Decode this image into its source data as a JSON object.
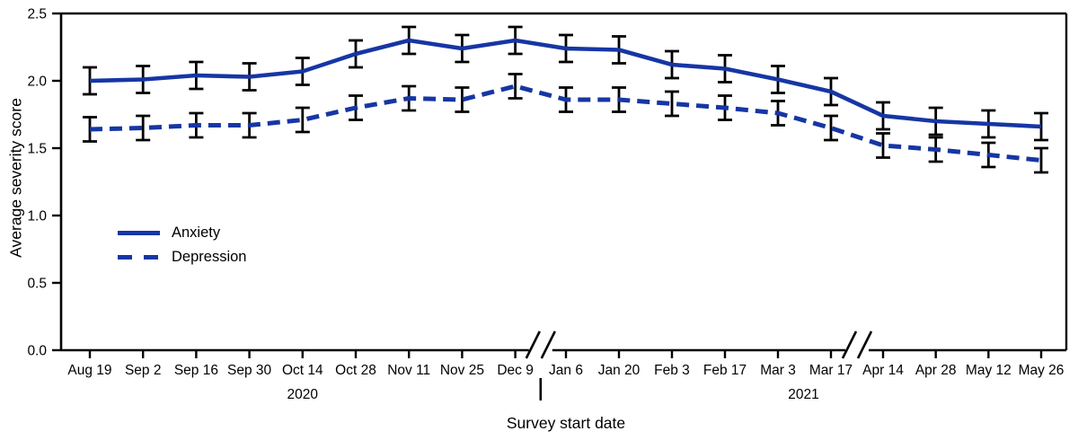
{
  "figure": {
    "ylabel": "Average severity score",
    "xlabel": "Survey start date",
    "legend": {
      "items": [
        {
          "label": "Anxiety",
          "style": "solid"
        },
        {
          "label": "Depression",
          "style": "dashed"
        }
      ]
    },
    "colors": {
      "series_blue": "#1636A4",
      "axis_black": "#000000"
    }
  },
  "chart_data": {
    "type": "line",
    "title": "",
    "xlabel": "Survey start date",
    "ylabel": "Average severity score",
    "ylim": [
      0,
      2.5
    ],
    "yticks": [
      "0.0",
      "0.5",
      "1.0",
      "1.5",
      "2.0",
      "2.5"
    ],
    "grid": false,
    "legend_position": "inside-left",
    "categories": [
      "Aug 19",
      "Sep 2",
      "Sep 16",
      "Sep 30",
      "Oct 14",
      "Oct 28",
      "Nov 11",
      "Nov 25",
      "Dec 9",
      "Jan 6",
      "Jan 20",
      "Feb 3",
      "Feb 17",
      "Mar 3",
      "Mar 17",
      "Apr 14",
      "Apr 28",
      "May 12",
      "May 26"
    ],
    "axis_breaks_after_categories": [
      "Dec 9",
      "Mar 17"
    ],
    "year_groups": [
      {
        "label": "2020",
        "from": "Aug 19",
        "to": "Dec 9"
      },
      {
        "label": "2021",
        "from": "Jan 6",
        "to": "May 26"
      }
    ],
    "series": [
      {
        "name": "Anxiety",
        "line_style": "solid",
        "color": "#1636A4",
        "values": [
          2.0,
          2.01,
          2.04,
          2.03,
          2.07,
          2.2,
          2.3,
          2.24,
          2.3,
          2.24,
          2.23,
          2.12,
          2.09,
          2.01,
          1.92,
          1.74,
          1.7,
          1.68,
          1.66
        ],
        "error": 0.1
      },
      {
        "name": "Depression",
        "line_style": "dashed",
        "color": "#1636A4",
        "values": [
          1.64,
          1.65,
          1.67,
          1.67,
          1.71,
          1.8,
          1.87,
          1.86,
          1.96,
          1.86,
          1.86,
          1.83,
          1.8,
          1.76,
          1.65,
          1.52,
          1.49,
          1.45,
          1.41
        ],
        "error": 0.09
      }
    ]
  }
}
